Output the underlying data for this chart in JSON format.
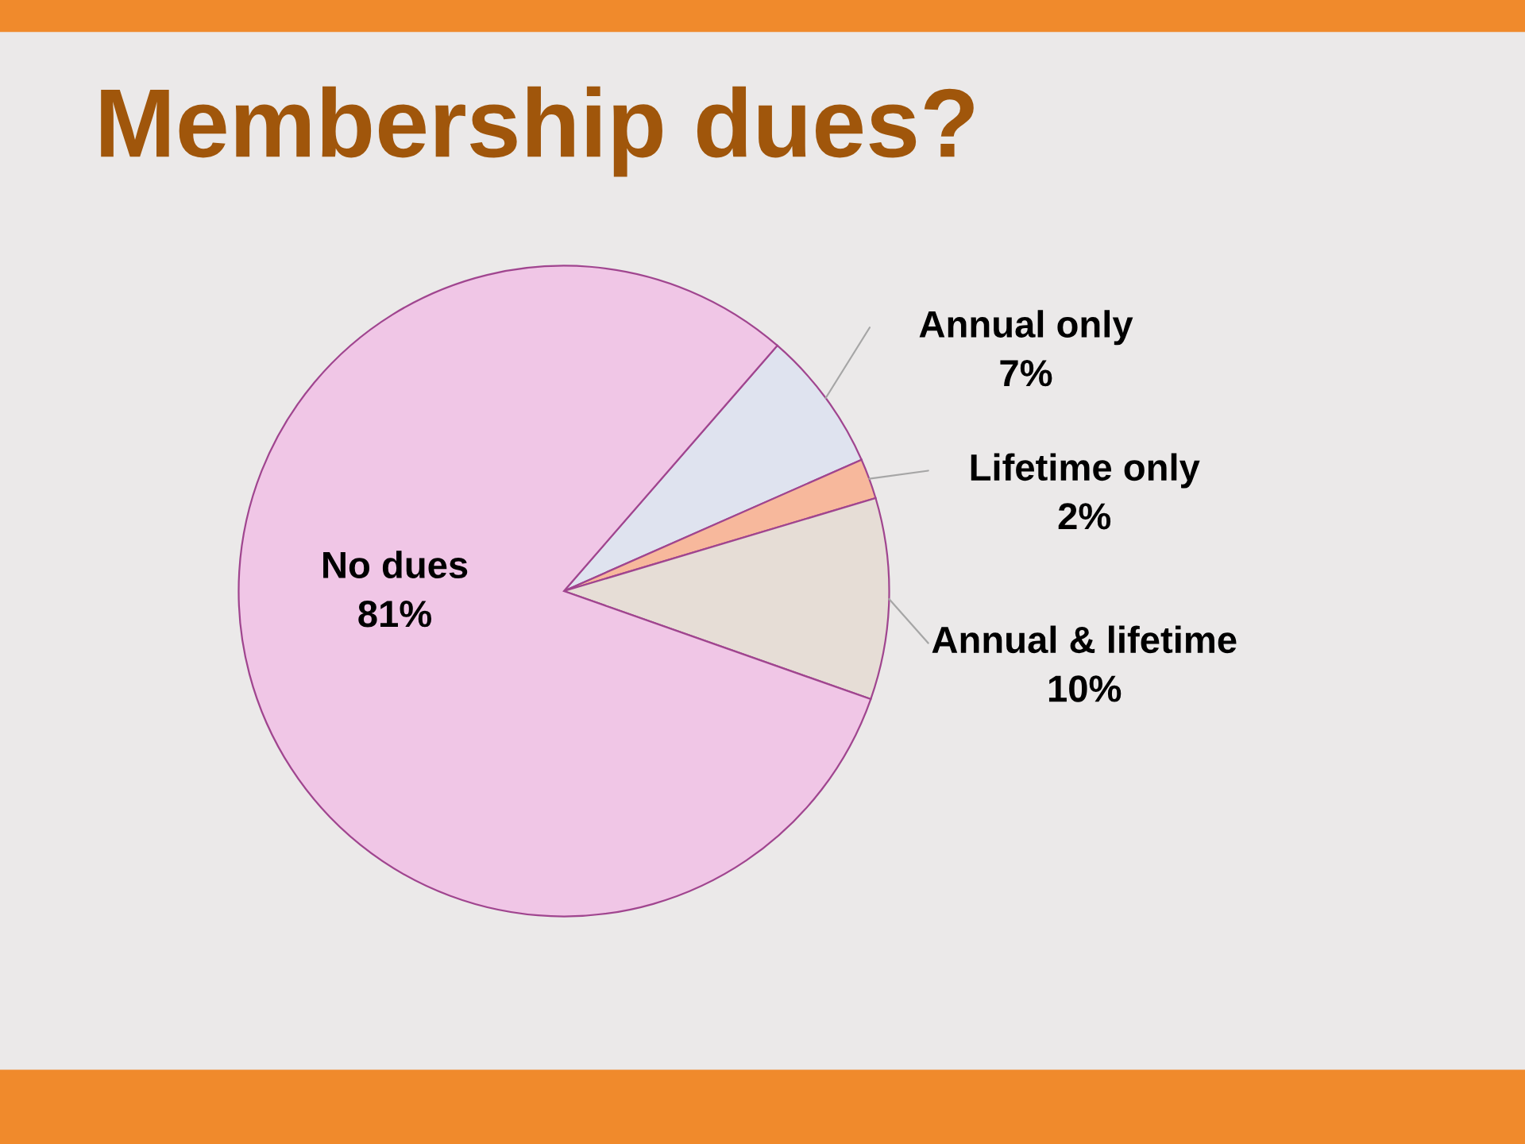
{
  "chart_data": {
    "type": "pie",
    "title": "Membership dues?",
    "categories": [
      "Annual only",
      "Lifetime only",
      "Annual & lifetime",
      "No dues"
    ],
    "values": [
      7,
      2,
      10,
      81
    ],
    "colors": [
      "#dfe3ef",
      "#f7b89c",
      "#e6ddd6",
      "#f0c6e6"
    ],
    "value_labels": [
      "7%",
      "2%",
      "10%",
      "81%"
    ],
    "legend": false
  }
}
